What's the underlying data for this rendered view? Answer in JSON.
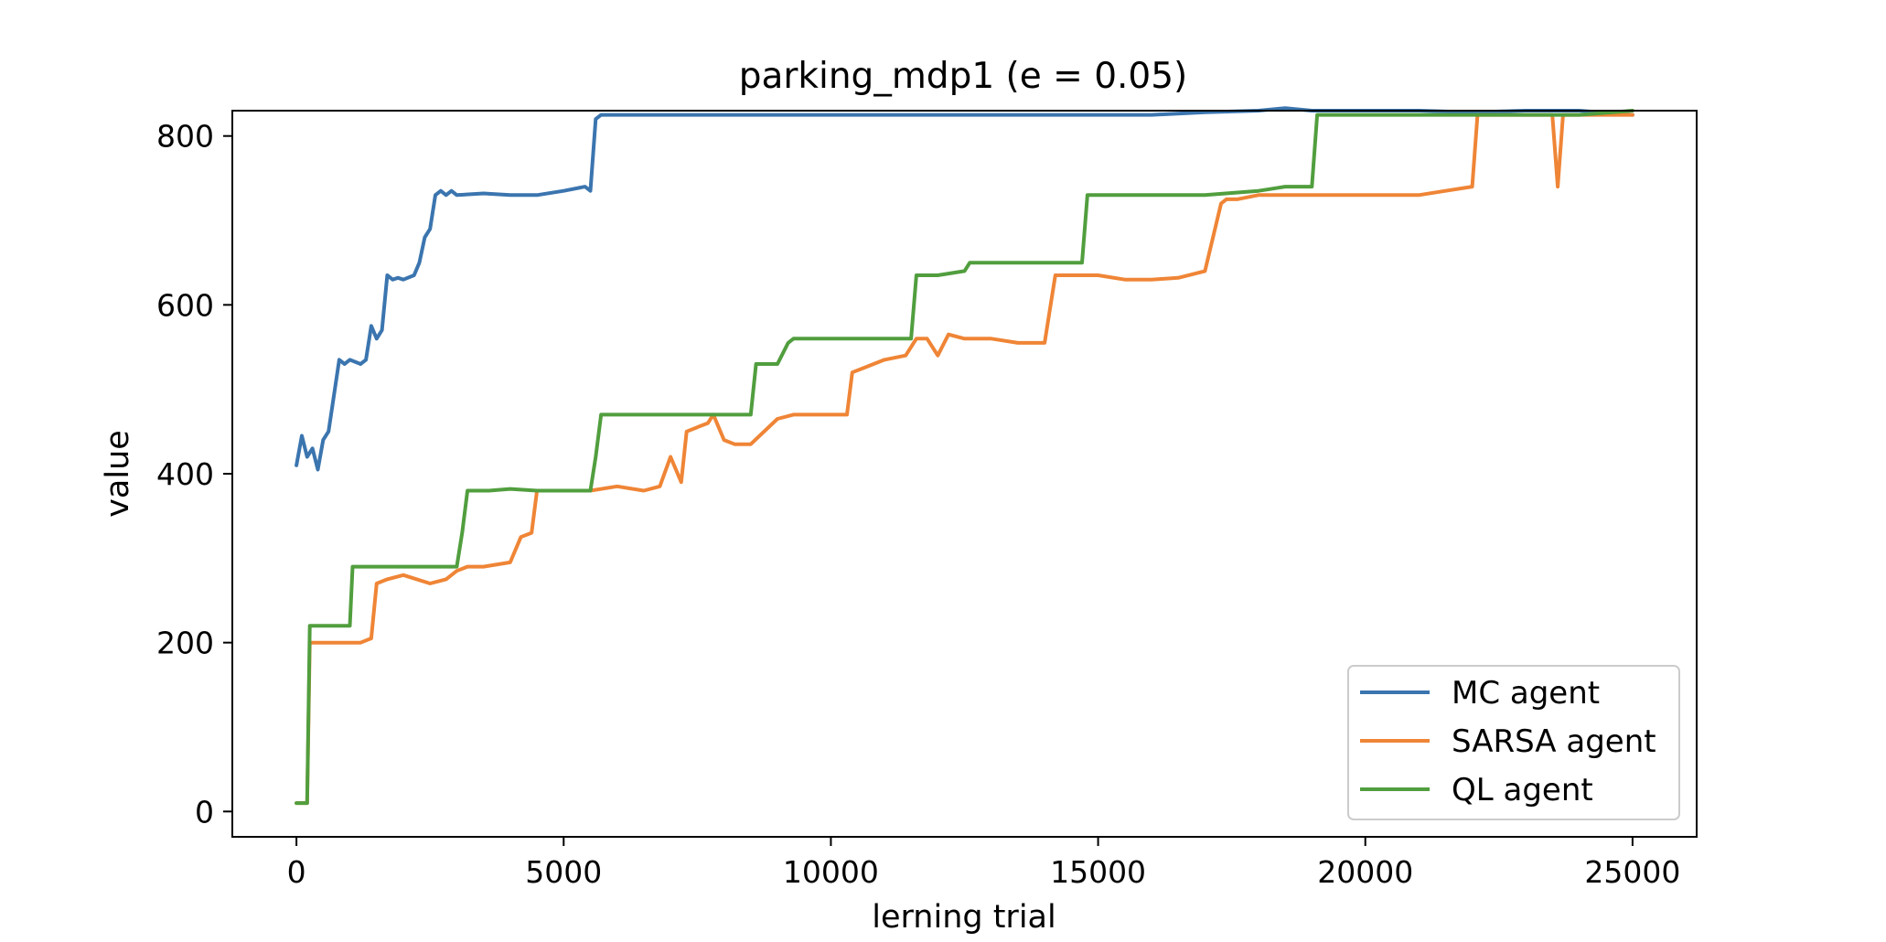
{
  "chart_data": {
    "type": "line",
    "title": "parking_mdp1 (e = 0.05)",
    "xlabel": "lerning trial",
    "ylabel": "value",
    "xlim": [
      -1200,
      26200
    ],
    "ylim": [
      -30,
      830
    ],
    "xticks": [
      0,
      5000,
      10000,
      15000,
      20000,
      25000
    ],
    "yticks": [
      0,
      200,
      400,
      600,
      800
    ],
    "grid": false,
    "legend_position": "lower right",
    "series": [
      {
        "name": "MC agent",
        "color": "#3b75af",
        "x": [
          0,
          100,
          200,
          300,
          400,
          500,
          600,
          800,
          900,
          1000,
          1200,
          1300,
          1400,
          1500,
          1600,
          1700,
          1800,
          1900,
          2000,
          2200,
          2300,
          2400,
          2500,
          2600,
          2700,
          2800,
          2900,
          3000,
          3500,
          4000,
          4500,
          5000,
          5400,
          5500,
          5600,
          5700,
          6000,
          7000,
          8000,
          9000,
          10000,
          11000,
          12000,
          13000,
          14000,
          15000,
          16000,
          17000,
          18000,
          18500,
          19000,
          20000,
          21000,
          22000,
          23000,
          24000,
          25000
        ],
        "values": [
          410,
          445,
          420,
          430,
          405,
          440,
          450,
          535,
          530,
          535,
          530,
          535,
          575,
          560,
          570,
          635,
          630,
          632,
          630,
          635,
          650,
          680,
          690,
          730,
          735,
          730,
          735,
          730,
          732,
          730,
          730,
          735,
          740,
          735,
          820,
          825,
          825,
          825,
          825,
          825,
          825,
          825,
          825,
          825,
          825,
          825,
          825,
          828,
          830,
          833,
          830,
          830,
          830,
          828,
          830,
          830,
          825
        ]
      },
      {
        "name": "SARSA agent",
        "color": "#ef8536",
        "x": [
          0,
          100,
          200,
          250,
          400,
          800,
          1200,
          1400,
          1500,
          1700,
          2000,
          2500,
          2800,
          3000,
          3200,
          3500,
          4000,
          4200,
          4400,
          4500,
          5000,
          5500,
          6000,
          6500,
          6800,
          7000,
          7200,
          7300,
          7500,
          7700,
          7800,
          8000,
          8200,
          8500,
          9000,
          9300,
          9500,
          10000,
          10300,
          10400,
          10600,
          11000,
          11400,
          11600,
          11800,
          12000,
          12200,
          12500,
          12800,
          13000,
          13500,
          14000,
          14200,
          14500,
          15000,
          15500,
          16000,
          16500,
          17000,
          17300,
          17400,
          17600,
          18000,
          19000,
          19500,
          20000,
          20500,
          21000,
          21500,
          22000,
          22100,
          22300,
          22800,
          23000,
          23500,
          23600,
          23700,
          23800,
          24000,
          24500,
          25000
        ],
        "values": [
          10,
          10,
          10,
          200,
          200,
          200,
          200,
          205,
          270,
          275,
          280,
          270,
          275,
          285,
          290,
          290,
          295,
          325,
          330,
          380,
          380,
          380,
          385,
          380,
          385,
          420,
          390,
          450,
          455,
          460,
          470,
          440,
          435,
          435,
          465,
          470,
          470,
          470,
          470,
          520,
          525,
          535,
          540,
          560,
          560,
          540,
          565,
          560,
          560,
          560,
          555,
          555,
          635,
          635,
          635,
          630,
          630,
          632,
          640,
          720,
          725,
          725,
          730,
          730,
          730,
          730,
          730,
          730,
          735,
          740,
          825,
          825,
          825,
          825,
          825,
          740,
          825,
          825,
          825,
          825,
          825
        ]
      },
      {
        "name": "QL agent",
        "color": "#519e3e",
        "x": [
          0,
          100,
          200,
          250,
          500,
          1000,
          1050,
          1500,
          2000,
          2500,
          3000,
          3100,
          3200,
          3300,
          3600,
          4000,
          4500,
          5000,
          5500,
          5600,
          5700,
          6000,
          6500,
          7000,
          7500,
          8000,
          8500,
          8600,
          8700,
          9000,
          9200,
          9300,
          9500,
          10000,
          10500,
          11000,
          11500,
          11600,
          11700,
          12000,
          12500,
          12600,
          13000,
          13500,
          14000,
          14500,
          14700,
          14800,
          15000,
          16000,
          17000,
          18000,
          18500,
          19000,
          19100,
          19200,
          20000,
          21000,
          22000,
          23000,
          24000,
          25000
        ],
        "values": [
          10,
          10,
          10,
          220,
          220,
          220,
          290,
          290,
          290,
          290,
          290,
          330,
          380,
          380,
          380,
          382,
          380,
          380,
          380,
          420,
          470,
          470,
          470,
          470,
          470,
          470,
          470,
          530,
          530,
          530,
          555,
          560,
          560,
          560,
          560,
          560,
          560,
          635,
          635,
          635,
          640,
          650,
          650,
          650,
          650,
          650,
          650,
          730,
          730,
          730,
          730,
          735,
          740,
          740,
          825,
          825,
          825,
          825,
          825,
          825,
          825,
          830
        ]
      }
    ]
  }
}
